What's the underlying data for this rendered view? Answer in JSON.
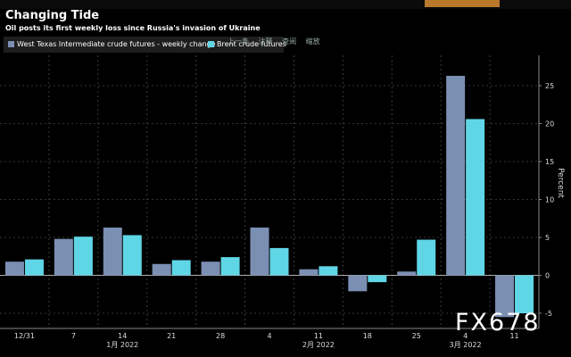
{
  "header": {
    "title": "Changing Tide",
    "subtitle": "Oil posts its first weekly loss since Russia's invasion of Ukraine"
  },
  "toolbar": {
    "items": [
      "上一条",
      "注释",
      "查阅",
      "缩放"
    ]
  },
  "watermark": "FX678",
  "colors": {
    "wti": "#7b8fb3",
    "brent": "#5fd6e6",
    "background": "#000000"
  },
  "chart_data": {
    "type": "bar",
    "title": "Changing Tide",
    "subtitle": "Oil posts its first weekly loss since Russia's invasion of Ukraine",
    "xlabel": "",
    "ylabel": "Percent",
    "ylim": [
      -7,
      29
    ],
    "yticks": [
      -5,
      0,
      5,
      10,
      15,
      20,
      25
    ],
    "legend_position": "top-left",
    "categories": [
      "12/31",
      "7",
      "14",
      "21",
      "28",
      "4",
      "11",
      "18",
      "25",
      "4",
      "11"
    ],
    "month_labels": [
      {
        "label": "1月 2022",
        "at": 2
      },
      {
        "label": "2月 2022",
        "at": 6
      },
      {
        "label": "3月 2022",
        "at": 9.5
      }
    ],
    "series": [
      {
        "name": "West Texas Intermediate crude futures - weekly change",
        "values": [
          1.8,
          4.8,
          6.3,
          1.5,
          1.8,
          6.3,
          0.8,
          -2.1,
          0.5,
          26.3,
          -5.5
        ]
      },
      {
        "name": "Brent crude futures",
        "values": [
          2.1,
          5.1,
          5.3,
          2.0,
          2.4,
          3.6,
          1.2,
          -0.9,
          4.7,
          20.6,
          -5.0
        ]
      }
    ]
  }
}
